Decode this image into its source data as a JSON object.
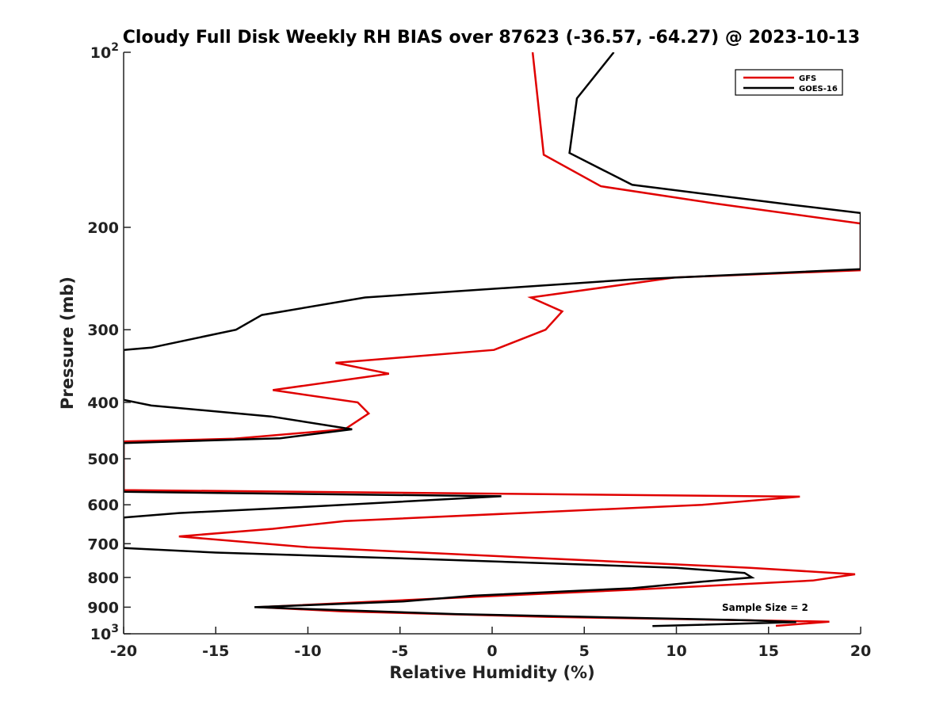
{
  "chart_data": {
    "type": "line",
    "title": "Cloudy Full Disk Weekly RH BIAS over 87623 (-36.57, -64.27) @ 2023-10-13",
    "xlabel": "Relative Humidity (%)",
    "ylabel": "Pressure (mb)",
    "xlim": [
      -20,
      20
    ],
    "ylim": [
      100,
      1000
    ],
    "y_scale": "log",
    "y_reversed": true,
    "x_ticks": [
      "-20",
      "-15",
      "-10",
      "-5",
      "0",
      "5",
      "10",
      "15",
      "20"
    ],
    "y_ticks": [
      {
        "base": "10",
        "exp": "2"
      },
      {
        "label": "200"
      },
      {
        "label": "300"
      },
      {
        "label": "400"
      },
      {
        "label": "500"
      },
      {
        "label": "600"
      },
      {
        "label": "700"
      },
      {
        "label": "800"
      },
      {
        "label": "900"
      },
      {
        "base": "10",
        "exp": "3"
      }
    ],
    "legend_position": "top-right",
    "grid": false,
    "annotation": "Sample Size = 2",
    "series": [
      {
        "name": "GFS",
        "color": "#e00000",
        "points": [
          [
            2.2,
            100
          ],
          [
            2.8,
            150
          ],
          [
            5.9,
            170
          ],
          [
            12.1,
            182
          ],
          [
            20,
            197
          ],
          [
            20,
            237
          ],
          [
            9.9,
            244
          ],
          [
            2.1,
            264
          ],
          [
            3.8,
            279
          ],
          [
            2.9,
            300
          ],
          [
            0.1,
            325
          ],
          [
            -8.5,
            342
          ],
          [
            -5.6,
            357
          ],
          [
            -11.9,
            381
          ],
          [
            -7.3,
            400
          ],
          [
            -6.7,
            418
          ],
          [
            -8.0,
            445
          ],
          [
            -11.6,
            455
          ],
          [
            -14.0,
            462
          ],
          [
            -20,
            467
          ],
          [
            -20,
            566
          ],
          [
            16.7,
            581
          ],
          [
            11.4,
            600
          ],
          [
            -8.0,
            640
          ],
          [
            -11.9,
            660
          ],
          [
            -17.0,
            680
          ],
          [
            -10.0,
            710
          ],
          [
            2.1,
            740
          ],
          [
            14.0,
            770
          ],
          [
            19.7,
            790
          ],
          [
            17.4,
            810
          ],
          [
            7.6,
            840
          ],
          [
            -3.0,
            870
          ],
          [
            -12.7,
            900
          ],
          [
            -8.1,
            915
          ],
          [
            3.0,
            935
          ],
          [
            18.3,
            953
          ],
          [
            15.4,
            969
          ]
        ]
      },
      {
        "name": "GOES-16",
        "color": "#000000",
        "points": [
          [
            6.6,
            100
          ],
          [
            4.6,
            120
          ],
          [
            4.2,
            149
          ],
          [
            7.6,
            169
          ],
          [
            16.3,
            183
          ],
          [
            20,
            189
          ],
          [
            20,
            236
          ],
          [
            7.5,
            246
          ],
          [
            -6.9,
            264
          ],
          [
            -12.5,
            283
          ],
          [
            -13.9,
            300
          ],
          [
            -18.5,
            322
          ],
          [
            -20,
            325
          ],
          [
            -20,
            396
          ],
          [
            -18.5,
            405
          ],
          [
            -12.0,
            423
          ],
          [
            -7.6,
            445
          ],
          [
            -11.5,
            461
          ],
          [
            -20,
            470
          ],
          [
            -20,
            570
          ],
          [
            0.5,
            580
          ],
          [
            -10.1,
            605
          ],
          [
            -17.0,
            620
          ],
          [
            -20,
            631
          ],
          [
            -20,
            712
          ],
          [
            -15.0,
            725
          ],
          [
            -3.0,
            745
          ],
          [
            10.0,
            770
          ],
          [
            13.7,
            786
          ],
          [
            14.1,
            800
          ],
          [
            11.5,
            813
          ],
          [
            7.6,
            835
          ],
          [
            -1.0,
            860
          ],
          [
            -4.9,
            880
          ],
          [
            -12.9,
            900
          ],
          [
            -2.0,
            925
          ],
          [
            14.0,
            948
          ],
          [
            16.5,
            955
          ],
          [
            8.7,
            970
          ]
        ]
      }
    ]
  }
}
